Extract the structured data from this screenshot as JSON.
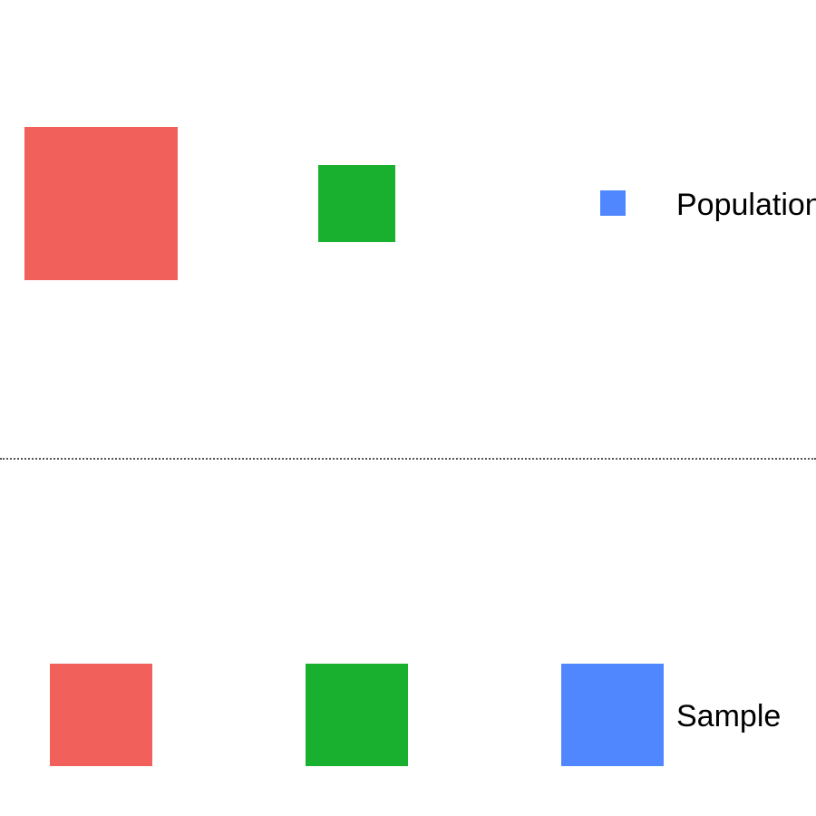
{
  "colors": {
    "red": "#F2605C",
    "green": "#19B02F",
    "blue": "#5087FF",
    "divider": "#555555"
  },
  "population": {
    "label": "Population",
    "squares": [
      {
        "name": "red-group",
        "color": "red"
      },
      {
        "name": "green-group",
        "color": "green"
      },
      {
        "name": "blue-group",
        "color": "blue"
      }
    ]
  },
  "sample": {
    "label": "Sample",
    "squares": [
      {
        "name": "red-group",
        "color": "red"
      },
      {
        "name": "green-group",
        "color": "green"
      },
      {
        "name": "blue-group",
        "color": "blue"
      }
    ]
  }
}
